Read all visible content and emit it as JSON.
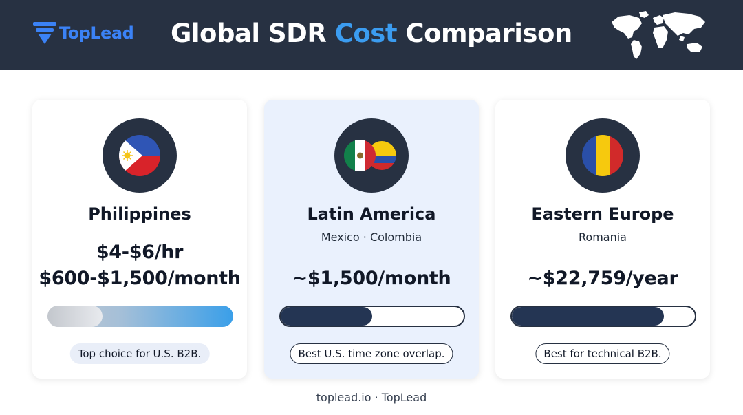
{
  "header": {
    "logo_text": "TopLead",
    "title_part1": "Global SDR ",
    "title_accent": "Cost",
    "title_part2": " Comparison",
    "bg_color": "#273142",
    "accent_color": "#3b9cf0"
  },
  "cards": [
    {
      "flag_icon": "philippines-flag-icon",
      "title": "Philippines",
      "price_line1": "$4-$6/hr",
      "price_line2": "$600-$1,500/month",
      "bar_level": 1.0,
      "note": "Top choice for U.S. B2B."
    },
    {
      "flag_icon": "mexico-colombia-flags-icon",
      "title": "Latin America",
      "subtitle": "Mexico · Colombia",
      "price": "~$1,500/month",
      "bar_level": 0.5,
      "note": "Best U.S. time zone overlap."
    },
    {
      "flag_icon": "romania-flag-icon",
      "title": "Eastern Europe",
      "subtitle": "Romania",
      "price": "~$22,759/year",
      "bar_level": 0.83,
      "note": "Best for technical B2B."
    }
  ],
  "footer": "toplead.io · TopLead"
}
